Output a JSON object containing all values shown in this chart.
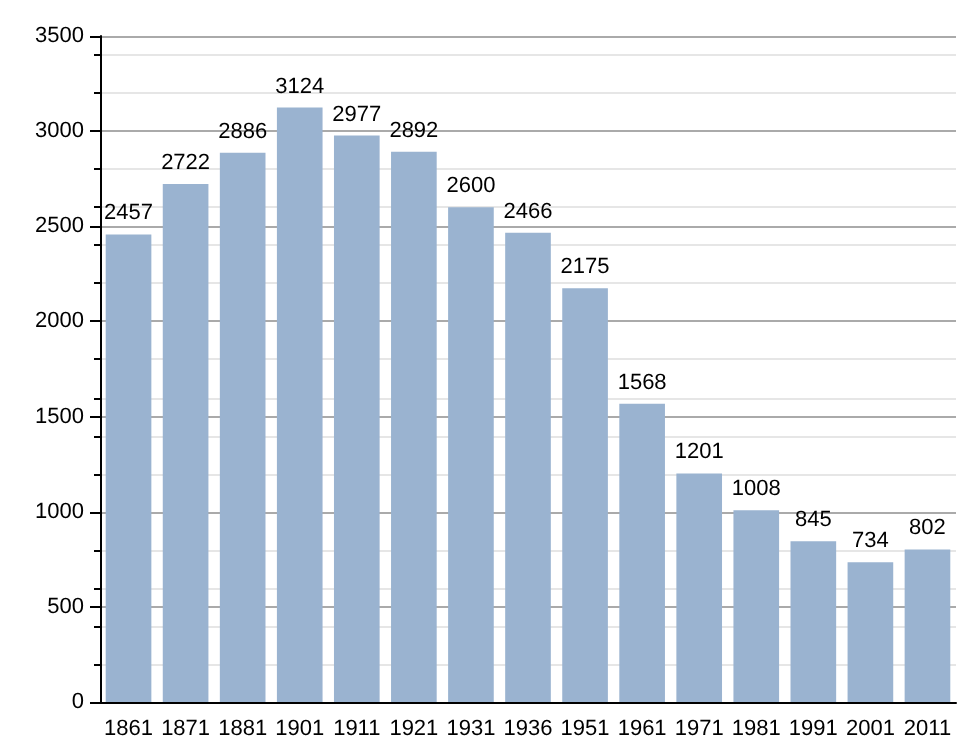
{
  "chart_data": {
    "type": "bar",
    "categories": [
      "1861",
      "1871",
      "1881",
      "1901",
      "1911",
      "1921",
      "1931",
      "1936",
      "1951",
      "1961",
      "1971",
      "1981",
      "1991",
      "2001",
      "2011"
    ],
    "values": [
      2457,
      2722,
      2886,
      3124,
      2977,
      2892,
      2600,
      2466,
      2175,
      1568,
      1201,
      1008,
      845,
      734,
      802
    ],
    "color": "#9ab3d0",
    "ylim": [
      0,
      3500
    ],
    "yticks": [
      0,
      500,
      1000,
      1500,
      2000,
      2500,
      3000,
      3500
    ],
    "grid": "y",
    "data_labels": true
  }
}
